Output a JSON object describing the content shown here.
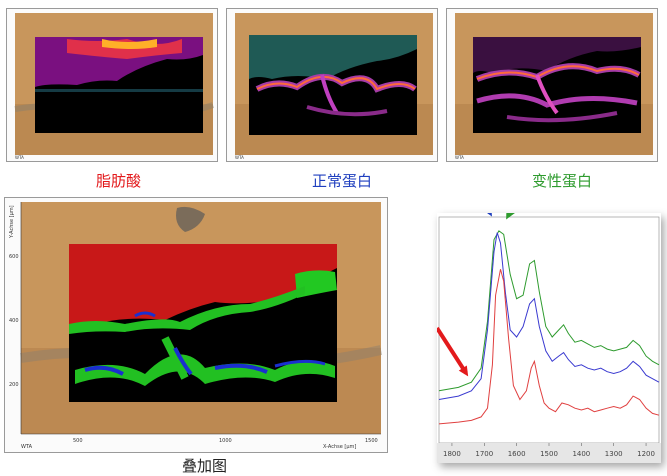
{
  "panels": [
    {
      "name": "fatty-acid",
      "caption": "脂肪酸",
      "caption_color": "#e31a1c"
    },
    {
      "name": "normal-protein",
      "caption": "正常蛋白",
      "caption_color": "#1f3fbf"
    },
    {
      "name": "denatured-protein",
      "caption": "变性蛋白",
      "caption_color": "#2e9b2e"
    }
  ],
  "overlay": {
    "caption": "叠加图",
    "x_axis_label": "X-Achse [µm]",
    "y_axis_label": "Y-Achse [µm]",
    "corner_label": "WTA",
    "x_ticks": [
      "500",
      "1000",
      "1500"
    ],
    "y_ticks": [
      "600",
      "400",
      "200"
    ],
    "colors": {
      "fatty_acid": "#cc1010",
      "normal_protein": "#1a2fd0",
      "denatured_protein": "#1fbf1f"
    }
  },
  "chart_data": {
    "type": "line",
    "xlabel": "",
    "ylabel": "",
    "x_ticks": [
      1800,
      1700,
      1600,
      1500,
      1400,
      1300,
      1200
    ],
    "xlim": [
      1840,
      1160
    ],
    "series": [
      {
        "color": "#2e9b2e",
        "x": [
          1840,
          1780,
          1740,
          1710,
          1690,
          1670,
          1655,
          1640,
          1620,
          1600,
          1580,
          1560,
          1545,
          1530,
          1510,
          1490,
          1470,
          1455,
          1440,
          1420,
          1400,
          1380,
          1360,
          1340,
          1320,
          1300,
          1280,
          1260,
          1240,
          1220,
          1200,
          1180,
          1160
        ],
        "y": [
          0.05,
          0.07,
          0.1,
          0.18,
          0.45,
          0.92,
          0.97,
          0.95,
          0.72,
          0.58,
          0.6,
          0.78,
          0.8,
          0.62,
          0.42,
          0.36,
          0.4,
          0.43,
          0.38,
          0.33,
          0.34,
          0.32,
          0.3,
          0.31,
          0.29,
          0.28,
          0.29,
          0.3,
          0.34,
          0.31,
          0.25,
          0.22,
          0.2
        ]
      },
      {
        "color": "#3a3ad0",
        "x": [
          1840,
          1780,
          1740,
          1710,
          1690,
          1670,
          1660,
          1650,
          1635,
          1620,
          1600,
          1580,
          1560,
          1545,
          1530,
          1510,
          1490,
          1470,
          1455,
          1440,
          1420,
          1400,
          1380,
          1360,
          1340,
          1320,
          1300,
          1280,
          1260,
          1240,
          1220,
          1200,
          1180,
          1160
        ],
        "y": [
          0.0,
          0.02,
          0.05,
          0.12,
          0.4,
          0.85,
          0.96,
          0.9,
          0.62,
          0.4,
          0.36,
          0.42,
          0.55,
          0.58,
          0.42,
          0.28,
          0.22,
          0.25,
          0.27,
          0.23,
          0.19,
          0.2,
          0.18,
          0.17,
          0.18,
          0.16,
          0.15,
          0.16,
          0.18,
          0.22,
          0.19,
          0.14,
          0.12,
          0.1
        ]
      },
      {
        "color": "#e04040",
        "x": [
          1840,
          1780,
          1740,
          1710,
          1690,
          1675,
          1665,
          1650,
          1640,
          1625,
          1610,
          1590,
          1570,
          1555,
          1545,
          1530,
          1515,
          1500,
          1480,
          1460,
          1440,
          1420,
          1400,
          1380,
          1360,
          1340,
          1320,
          1300,
          1280,
          1260,
          1240,
          1220,
          1200,
          1180,
          1160
        ],
        "y": [
          -0.14,
          -0.13,
          -0.12,
          -0.1,
          -0.05,
          0.2,
          0.6,
          0.75,
          0.68,
          0.35,
          0.08,
          0.0,
          0.05,
          0.18,
          0.22,
          0.08,
          -0.02,
          -0.05,
          -0.07,
          -0.02,
          -0.03,
          -0.05,
          -0.06,
          -0.05,
          -0.07,
          -0.06,
          -0.05,
          -0.04,
          -0.05,
          -0.03,
          0.02,
          0.0,
          -0.05,
          -0.08,
          -0.09
        ]
      }
    ],
    "arrows": [
      {
        "color": "#e31a1c"
      },
      {
        "color": "#1f3fbf"
      },
      {
        "color": "#2e9b2e"
      }
    ]
  }
}
